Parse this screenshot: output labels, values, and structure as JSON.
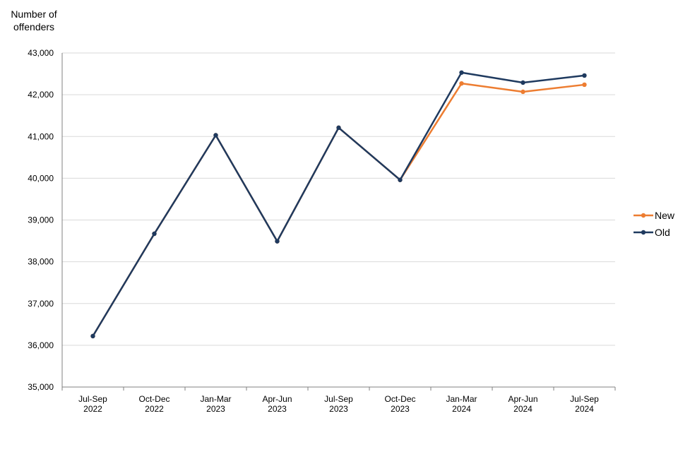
{
  "chart_data": {
    "type": "line",
    "ylabel": "Number of offenders",
    "ylabel_lines": [
      "Number of",
      "offenders"
    ],
    "categories": [
      [
        "Jul-Sep",
        "2022"
      ],
      [
        "Oct-Dec",
        "2022"
      ],
      [
        "Jan-Mar",
        "2023"
      ],
      [
        "Apr-Jun",
        "2023"
      ],
      [
        "Jul-Sep",
        "2023"
      ],
      [
        "Oct-Dec",
        "2023"
      ],
      [
        "Jan-Mar",
        "2024"
      ],
      [
        "Apr-Jun",
        "2024"
      ],
      [
        "Jul-Sep",
        "2024"
      ]
    ],
    "ylim": [
      35000,
      43000
    ],
    "yticks": [
      35000,
      36000,
      37000,
      38000,
      39000,
      40000,
      41000,
      42000,
      43000
    ],
    "ytick_labels": [
      "35,000",
      "36,000",
      "37,000",
      "38,000",
      "39,000",
      "40,000",
      "41,000",
      "42,000",
      "43,000"
    ],
    "grid": true,
    "legend_position": "right",
    "series": [
      {
        "name": "New",
        "color": "#ED7D31",
        "values": [
          36220,
          38670,
          41030,
          38490,
          41210,
          39960,
          42270,
          42070,
          42240
        ]
      },
      {
        "name": "Old",
        "color": "#1F3A5F",
        "values": [
          36220,
          38670,
          41030,
          38490,
          41210,
          39960,
          42530,
          42290,
          42460
        ]
      }
    ]
  }
}
